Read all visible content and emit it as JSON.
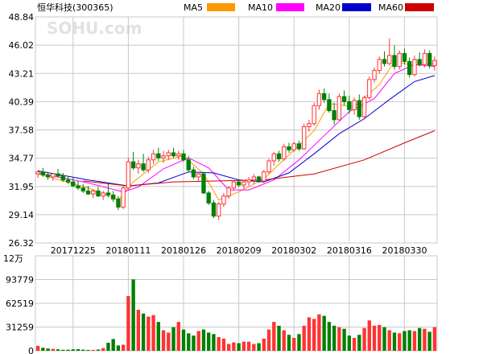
{
  "chart_data": {
    "type": "candlestick",
    "title": "恒华科技(300365)",
    "watermark": "SOHU.com",
    "legend": [
      {
        "name": "MA5",
        "color": "#ff9900"
      },
      {
        "name": "MA10",
        "color": "#ff00ff"
      },
      {
        "name": "MA20",
        "color": "#0000cc"
      },
      {
        "name": "MA60",
        "color": "#cc0000"
      }
    ],
    "colors": {
      "up": "#ff3333",
      "down": "#008000",
      "grid": "#c8c8c8"
    },
    "price_axis": {
      "ticks": [
        "48.84",
        "46.02",
        "43.21",
        "40.39",
        "37.58",
        "34.77",
        "31.95",
        "29.14",
        "26.32"
      ],
      "ylim": [
        26.32,
        48.84
      ]
    },
    "volume_axis": {
      "ticks": [
        "93779",
        "62519",
        "31259",
        "0"
      ],
      "ylim": [
        0,
        125000
      ]
    },
    "volume_unit": "12万",
    "x_ticks": [
      {
        "label": "20171225",
        "index": 7
      },
      {
        "label": "20180111",
        "index": 18
      },
      {
        "label": "20180126",
        "index": 29
      },
      {
        "label": "20180209",
        "index": 40
      },
      {
        "label": "20180302",
        "index": 51
      },
      {
        "label": "20180316",
        "index": 62
      },
      {
        "label": "20180330",
        "index": 73
      }
    ],
    "ohlc": [
      [
        33.2,
        33.6,
        32.8,
        33.4
      ],
      [
        33.4,
        33.8,
        32.9,
        33.1
      ],
      [
        33.1,
        33.4,
        32.6,
        32.9
      ],
      [
        32.9,
        33.3,
        32.5,
        33.2
      ],
      [
        33.2,
        33.7,
        32.8,
        33.0
      ],
      [
        33.0,
        33.3,
        32.4,
        32.6
      ],
      [
        32.6,
        33.0,
        32.2,
        32.4
      ],
      [
        32.4,
        32.9,
        31.9,
        32.0
      ],
      [
        32.0,
        32.5,
        31.6,
        31.8
      ],
      [
        31.8,
        32.2,
        31.3,
        31.5
      ],
      [
        31.5,
        32.0,
        31.1,
        31.2
      ],
      [
        31.2,
        31.7,
        30.8,
        31.5
      ],
      [
        31.5,
        31.9,
        30.9,
        31.0
      ],
      [
        31.0,
        31.5,
        30.6,
        31.3
      ],
      [
        31.3,
        32.2,
        30.9,
        31.1
      ],
      [
        31.1,
        31.5,
        30.4,
        30.7
      ],
      [
        30.7,
        31.0,
        29.6,
        29.9
      ],
      [
        29.9,
        32.0,
        29.7,
        31.8
      ],
      [
        31.8,
        34.8,
        31.6,
        34.4
      ],
      [
        34.4,
        35.4,
        33.6,
        33.8
      ],
      [
        33.8,
        34.6,
        33.2,
        34.2
      ],
      [
        34.2,
        35.2,
        33.4,
        33.6
      ],
      [
        33.6,
        34.9,
        33.3,
        34.6
      ],
      [
        34.6,
        35.6,
        34.2,
        35.2
      ],
      [
        35.2,
        35.8,
        34.5,
        34.8
      ],
      [
        34.8,
        35.5,
        34.3,
        35.0
      ],
      [
        35.0,
        35.6,
        34.6,
        35.3
      ],
      [
        35.3,
        35.8,
        34.8,
        35.0
      ],
      [
        35.0,
        35.5,
        34.6,
        35.2
      ],
      [
        35.2,
        35.6,
        34.4,
        34.6
      ],
      [
        34.6,
        35.0,
        33.4,
        33.6
      ],
      [
        33.6,
        33.9,
        32.7,
        32.9
      ],
      [
        32.9,
        33.4,
        32.5,
        33.2
      ],
      [
        33.2,
        33.4,
        31.2,
        31.3
      ],
      [
        31.3,
        31.5,
        30.1,
        30.3
      ],
      [
        30.3,
        30.6,
        28.8,
        29.0
      ],
      [
        29.0,
        30.4,
        28.6,
        30.2
      ],
      [
        30.2,
        31.3,
        29.9,
        31.0
      ],
      [
        31.0,
        32.0,
        30.7,
        31.8
      ],
      [
        31.8,
        32.6,
        31.6,
        32.4
      ],
      [
        32.4,
        32.7,
        31.9,
        32.1
      ],
      [
        32.1,
        32.6,
        31.7,
        32.4
      ],
      [
        32.4,
        32.9,
        32.0,
        32.6
      ],
      [
        32.6,
        33.2,
        32.2,
        32.9
      ],
      [
        32.9,
        33.0,
        32.3,
        32.5
      ],
      [
        32.5,
        33.6,
        32.3,
        33.4
      ],
      [
        33.4,
        34.7,
        33.2,
        34.5
      ],
      [
        34.5,
        35.4,
        34.0,
        35.2
      ],
      [
        35.2,
        35.5,
        34.4,
        34.7
      ],
      [
        34.7,
        36.2,
        34.5,
        35.9
      ],
      [
        35.9,
        36.3,
        35.3,
        35.6
      ],
      [
        35.6,
        36.4,
        35.4,
        36.2
      ],
      [
        36.2,
        36.5,
        35.5,
        35.7
      ],
      [
        35.7,
        38.2,
        35.6,
        37.9
      ],
      [
        37.9,
        38.6,
        37.4,
        38.2
      ],
      [
        38.2,
        40.3,
        38.0,
        40.0
      ],
      [
        40.0,
        41.6,
        39.6,
        41.2
      ],
      [
        41.2,
        41.7,
        40.3,
        40.6
      ],
      [
        40.6,
        41.2,
        39.3,
        39.5
      ],
      [
        39.5,
        40.3,
        38.1,
        38.6
      ],
      [
        38.6,
        41.2,
        38.5,
        40.9
      ],
      [
        40.9,
        41.5,
        40.0,
        40.4
      ],
      [
        40.4,
        41.0,
        39.2,
        39.6
      ],
      [
        39.6,
        40.8,
        39.1,
        40.5
      ],
      [
        40.5,
        41.1,
        38.6,
        38.9
      ],
      [
        38.9,
        41.0,
        38.7,
        40.8
      ],
      [
        40.8,
        42.9,
        40.6,
        42.6
      ],
      [
        42.6,
        43.8,
        42.3,
        43.5
      ],
      [
        43.5,
        44.9,
        43.2,
        44.6
      ],
      [
        44.6,
        45.4,
        43.9,
        44.2
      ],
      [
        44.2,
        46.7,
        44.0,
        45.0
      ],
      [
        45.0,
        46.0,
        43.6,
        43.9
      ],
      [
        43.9,
        45.5,
        43.6,
        45.2
      ],
      [
        45.2,
        45.7,
        44.1,
        44.4
      ],
      [
        44.4,
        44.8,
        42.8,
        43.1
      ],
      [
        43.1,
        45.0,
        42.9,
        44.6
      ],
      [
        44.6,
        45.3,
        43.9,
        44.1
      ],
      [
        44.1,
        45.6,
        43.8,
        45.2
      ],
      [
        45.2,
        45.5,
        43.7,
        44.0
      ],
      [
        44.0,
        44.9,
        43.5,
        44.5
      ]
    ],
    "volume": [
      6500,
      4000,
      3000,
      2500,
      1900,
      1300,
      1400,
      1900,
      2100,
      1500,
      1100,
      1200,
      1600,
      3500,
      10500,
      15500,
      7000,
      8000,
      72000,
      94000,
      54000,
      49000,
      45000,
      47000,
      38000,
      27000,
      24000,
      31000,
      38000,
      28000,
      23000,
      20000,
      26000,
      28000,
      24000,
      22000,
      18000,
      16000,
      9000,
      11000,
      10000,
      12000,
      12000,
      9000,
      10000,
      16000,
      28000,
      38000,
      33000,
      27000,
      21000,
      17000,
      22000,
      33000,
      44000,
      42000,
      48000,
      46000,
      38000,
      33000,
      31000,
      29000,
      20000,
      17000,
      21000,
      30000,
      40000,
      33000,
      34000,
      31000,
      27000,
      24000,
      23000,
      26000,
      27000,
      26000,
      30000,
      29000,
      25000,
      31000
    ],
    "ma": {
      "MA5": {
        "points": [
          [
            0,
            33.2
          ],
          [
            10,
            31.8
          ],
          [
            16,
            30.6
          ],
          [
            19,
            32.4
          ],
          [
            24,
            34.4
          ],
          [
            29,
            35.0
          ],
          [
            33,
            33.2
          ],
          [
            36,
            30.6
          ],
          [
            40,
            31.4
          ],
          [
            45,
            32.7
          ],
          [
            50,
            35.1
          ],
          [
            55,
            37.5
          ],
          [
            58,
            40.2
          ],
          [
            63,
            39.9
          ],
          [
            68,
            42.1
          ],
          [
            71,
            44.4
          ],
          [
            75,
            44.0
          ],
          [
            79,
            44.2
          ]
        ]
      },
      "MA10": {
        "points": [
          [
            0,
            33.3
          ],
          [
            10,
            32.3
          ],
          [
            17,
            31.4
          ],
          [
            20,
            31.9
          ],
          [
            25,
            33.7
          ],
          [
            30,
            34.8
          ],
          [
            34,
            33.8
          ],
          [
            38,
            31.6
          ],
          [
            42,
            31.6
          ],
          [
            47,
            32.6
          ],
          [
            52,
            34.6
          ],
          [
            57,
            37.0
          ],
          [
            62,
            39.4
          ],
          [
            67,
            40.7
          ],
          [
            71,
            43.2
          ],
          [
            75,
            44.1
          ],
          [
            79,
            43.9
          ]
        ]
      },
      "MA20": {
        "points": [
          [
            0,
            33.5
          ],
          [
            10,
            32.6
          ],
          [
            18,
            32.0
          ],
          [
            24,
            32.3
          ],
          [
            30,
            33.4
          ],
          [
            35,
            33.3
          ],
          [
            40,
            32.6
          ],
          [
            45,
            32.4
          ],
          [
            50,
            33.3
          ],
          [
            55,
            35.2
          ],
          [
            60,
            37.2
          ],
          [
            65,
            38.7
          ],
          [
            70,
            40.6
          ],
          [
            75,
            42.4
          ],
          [
            79,
            43.0
          ]
        ]
      },
      "MA60": {
        "points": [
          [
            9,
            32.5
          ],
          [
            18,
            32.0
          ],
          [
            27,
            32.4
          ],
          [
            36,
            32.5
          ],
          [
            45,
            32.6
          ],
          [
            55,
            33.2
          ],
          [
            65,
            34.6
          ],
          [
            74,
            36.5
          ],
          [
            79,
            37.5
          ]
        ]
      }
    }
  }
}
